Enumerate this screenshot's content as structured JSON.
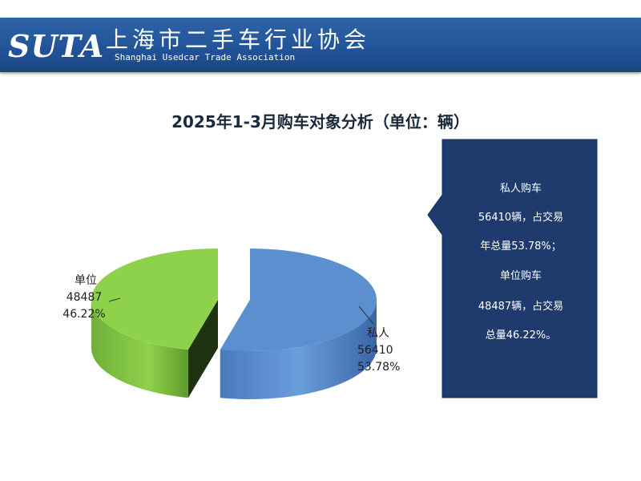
{
  "header": {
    "logo_text": "SUTA",
    "org_name_cn": "上海市二手车行业协会",
    "org_name_en": "Shanghai Usedcar Trade Association"
  },
  "chart_data": {
    "type": "pie",
    "title": "2025年1-3月购车对象分析（单位：辆）",
    "slices": [
      {
        "name": "私人",
        "value": 56410,
        "percent_label": "53.78%",
        "color": "#5b8fd0"
      },
      {
        "name": "单位",
        "value": 48487,
        "percent_label": "46.22%",
        "color": "#8ed14a"
      }
    ]
  },
  "callout": {
    "lines": [
      "私人购车",
      "56410辆，占交易",
      "年总量53.78%；",
      "单位购车",
      "48487辆，占交易",
      "总量46.22%。"
    ]
  },
  "colors": {
    "header_blue": "#1f4f94",
    "callout_navy": "#1f3b6e"
  }
}
